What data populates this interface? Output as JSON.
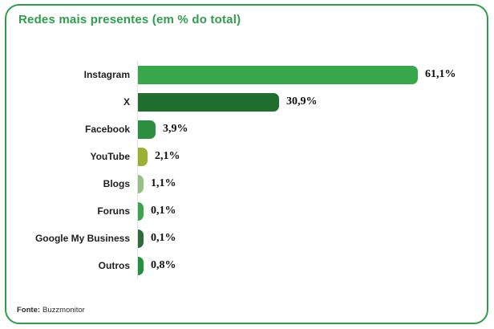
{
  "card": {
    "title": "Redes mais presentes (em % do total)",
    "accent_color": "#2d9e4b"
  },
  "source": {
    "prefix": "Fonte:",
    "text": "Buzzmonitor"
  },
  "chart_data": {
    "type": "bar",
    "orientation": "horizontal",
    "title": "Redes mais presentes (em % do total)",
    "xlabel": "",
    "ylabel": "",
    "xlim": [
      0,
      65
    ],
    "grid": false,
    "legend": "none",
    "unit": "%",
    "decimal_separator": ",",
    "categories": [
      "Instagram",
      "X",
      "Facebook",
      "YouTube",
      "Blogs",
      "Foruns",
      "Google My Business",
      "Outros"
    ],
    "values": [
      61.1,
      30.9,
      3.9,
      2.1,
      1.1,
      0.1,
      0.1,
      0.8
    ],
    "value_labels": [
      "61,1%",
      "30,9%",
      "3,9%",
      "2,1%",
      "1,1%",
      "0,1%",
      "0,1%",
      "0,8%"
    ],
    "bar_colors": [
      "#38a74c",
      "#1f6e2e",
      "#2b8f3f",
      "#9cb033",
      "#95c088",
      "#3da452",
      "#2c6b3a",
      "#22913f"
    ],
    "axis_line_color": "#e2e2e2",
    "label_text_color": "#1e1e1e",
    "value_text_color": "#101010"
  }
}
